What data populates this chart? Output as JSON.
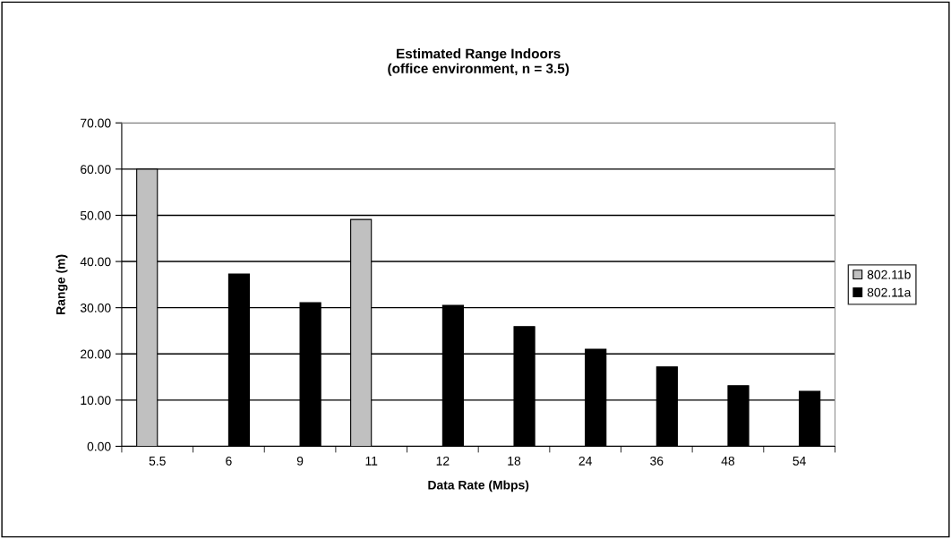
{
  "chart_data": {
    "type": "bar",
    "title": "Estimated Range Indoors\n(office environment, n = 3.5)",
    "xlabel": "Data Rate (Mbps)",
    "ylabel": "Range (m)",
    "categories": [
      "5.5",
      "6",
      "9",
      "11",
      "12",
      "18",
      "24",
      "36",
      "48",
      "54"
    ],
    "series": [
      {
        "name": "802.11b",
        "color": "#c0c0c0",
        "values": [
          60.0,
          null,
          null,
          49.1,
          null,
          null,
          null,
          null,
          null,
          null
        ]
      },
      {
        "name": "802.11a",
        "color": "#000000",
        "values": [
          null,
          37.3,
          31.1,
          null,
          30.5,
          25.9,
          21.0,
          17.2,
          13.1,
          11.9
        ]
      }
    ],
    "ylim": [
      0,
      70
    ],
    "yticks": [
      {
        "value": 0,
        "label": "0.00"
      },
      {
        "value": 10,
        "label": "10.00"
      },
      {
        "value": 20,
        "label": "20.00"
      },
      {
        "value": 30,
        "label": "30.00"
      },
      {
        "value": 40,
        "label": "40.00"
      },
      {
        "value": 50,
        "label": "50.00"
      },
      {
        "value": 60,
        "label": "60.00"
      },
      {
        "value": 70,
        "label": "70.00"
      }
    ],
    "grid": "y",
    "legend": "right"
  }
}
